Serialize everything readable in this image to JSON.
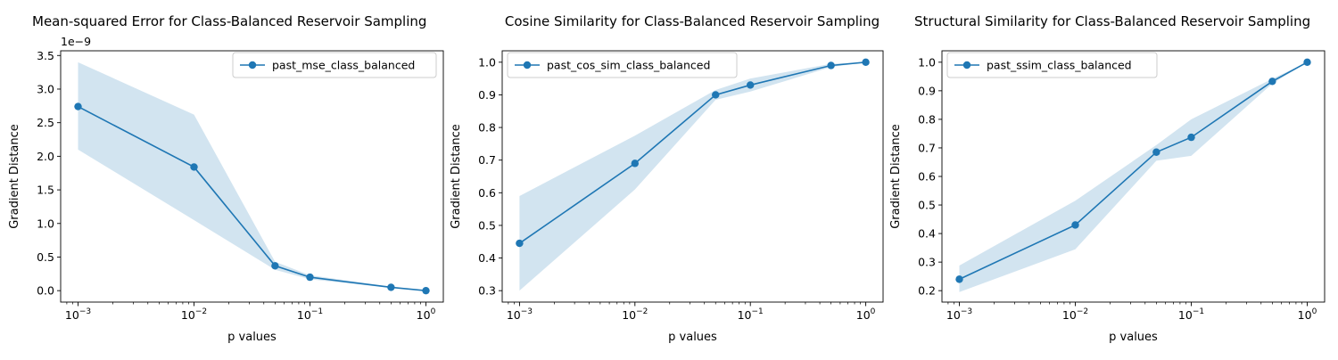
{
  "colors": {
    "line": "#1f77b4",
    "band": "#1f77b4",
    "axes": "#000000",
    "background": "#ffffff"
  },
  "chart_data": [
    {
      "type": "line",
      "title": "Mean-squared Error for Class-Balanced Reservoir Sampling",
      "xlabel": "p values",
      "ylabel": "Gradient Distance",
      "x_scale": "log",
      "x": [
        0.001,
        0.01,
        0.05,
        0.1,
        0.5,
        1.0
      ],
      "x_tick_values": [
        0.001,
        0.01,
        0.1,
        1
      ],
      "x_tick_labels": [
        [
          "10",
          "−3"
        ],
        [
          "10",
          "−2"
        ],
        [
          "10",
          "−1"
        ],
        [
          "10",
          "0"
        ]
      ],
      "y_ticks": [
        0.0,
        0.5,
        1.0,
        1.5,
        2.0,
        2.5,
        3.0,
        3.5
      ],
      "y_tick_labels": [
        "0.0",
        "0.5",
        "1.0",
        "1.5",
        "2.0",
        "2.5",
        "3.0",
        "3.5"
      ],
      "y_offset_label": "1e−9",
      "ylim": [
        -0.17,
        3.57
      ],
      "legend_position": "upper right",
      "series": [
        {
          "name": "past_mse_class_balanced",
          "values": [
            2.74,
            1.84,
            0.37,
            0.2,
            0.05,
            0.0
          ],
          "lower": [
            2.1,
            1.05,
            0.31,
            0.17,
            0.04,
            0.0
          ],
          "upper": [
            3.4,
            2.62,
            0.43,
            0.23,
            0.06,
            0.0
          ]
        }
      ]
    },
    {
      "type": "line",
      "title": "Cosine Similarity for Class-Balanced Reservoir Sampling",
      "xlabel": "p values",
      "ylabel": "Gradient Distance",
      "x_scale": "log",
      "x": [
        0.001,
        0.01,
        0.05,
        0.1,
        0.5,
        1.0
      ],
      "x_tick_values": [
        0.001,
        0.01,
        0.1,
        1
      ],
      "x_tick_labels": [
        [
          "10",
          "−3"
        ],
        [
          "10",
          "−2"
        ],
        [
          "10",
          "−1"
        ],
        [
          "10",
          "0"
        ]
      ],
      "y_ticks": [
        0.3,
        0.4,
        0.5,
        0.6,
        0.7,
        0.8,
        0.9,
        1.0
      ],
      "y_tick_labels": [
        "0.3",
        "0.4",
        "0.5",
        "0.6",
        "0.7",
        "0.8",
        "0.9",
        "1.0"
      ],
      "ylim": [
        0.265,
        1.035
      ],
      "legend_position": "upper left",
      "series": [
        {
          "name": "past_cos_sim_class_balanced",
          "values": [
            0.445,
            0.69,
            0.9,
            0.93,
            0.99,
            1.0
          ],
          "lower": [
            0.3,
            0.61,
            0.885,
            0.91,
            0.985,
            1.0
          ],
          "upper": [
            0.59,
            0.775,
            0.915,
            0.95,
            0.995,
            1.0
          ]
        }
      ]
    },
    {
      "type": "line",
      "title": "Structural Similarity for Class-Balanced Reservoir Sampling",
      "xlabel": "p values",
      "ylabel": "Gradient Distance",
      "x_scale": "log",
      "x": [
        0.001,
        0.01,
        0.05,
        0.1,
        0.5,
        1.0
      ],
      "x_tick_values": [
        0.001,
        0.01,
        0.1,
        1
      ],
      "x_tick_labels": [
        [
          "10",
          "−3"
        ],
        [
          "10",
          "−2"
        ],
        [
          "10",
          "−1"
        ],
        [
          "10",
          "0"
        ]
      ],
      "y_ticks": [
        0.2,
        0.3,
        0.4,
        0.5,
        0.6,
        0.7,
        0.8,
        0.9,
        1.0
      ],
      "y_tick_labels": [
        "0.2",
        "0.3",
        "0.4",
        "0.5",
        "0.6",
        "0.7",
        "0.8",
        "0.9",
        "1.0"
      ],
      "ylim": [
        0.16,
        1.04
      ],
      "legend_position": "upper left",
      "series": [
        {
          "name": "past_ssim_class_balanced",
          "values": [
            0.24,
            0.43,
            0.685,
            0.737,
            0.933,
            1.0
          ],
          "lower": [
            0.195,
            0.345,
            0.655,
            0.672,
            0.925,
            1.0
          ],
          "upper": [
            0.288,
            0.515,
            0.71,
            0.8,
            0.942,
            1.0
          ]
        }
      ]
    }
  ]
}
